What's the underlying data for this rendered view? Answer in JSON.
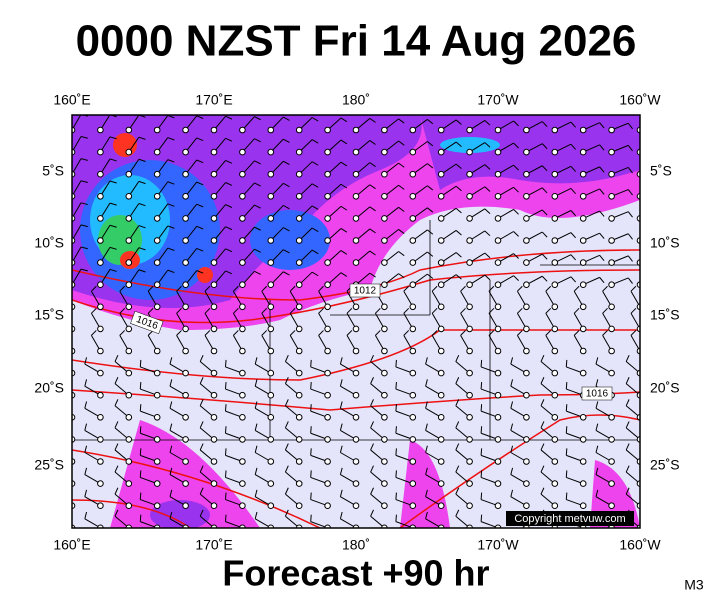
{
  "header": {
    "title": "0000 NZST Fri 14 Aug 2026"
  },
  "map": {
    "longitude_labels": [
      "160˚E",
      "170˚E",
      "180˚",
      "170˚W",
      "160˚W"
    ],
    "latitude_labels": [
      "5˚S",
      "10˚S",
      "15˚S",
      "20˚S",
      "25˚S"
    ],
    "isobar_labels": [
      "1012",
      "1016",
      "1016"
    ],
    "copyright": "Copyright metvuw.com"
  },
  "footer": {
    "text": "Forecast +90 hr",
    "code": "M3"
  }
}
